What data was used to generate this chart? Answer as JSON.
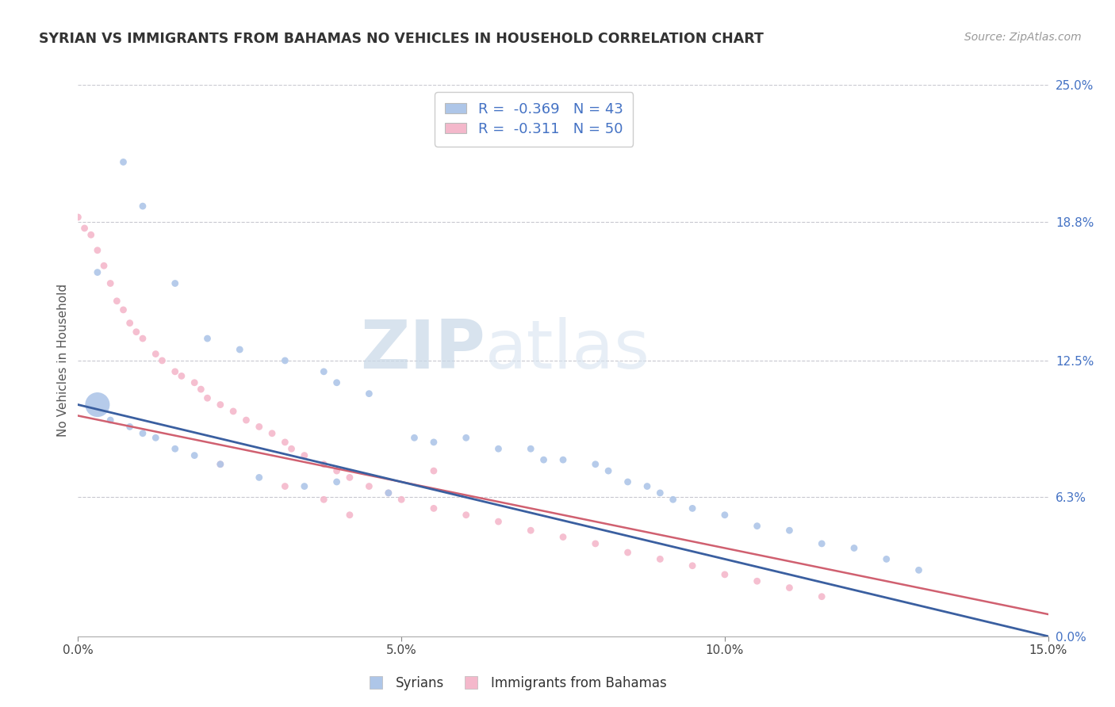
{
  "title": "SYRIAN VS IMMIGRANTS FROM BAHAMAS NO VEHICLES IN HOUSEHOLD CORRELATION CHART",
  "source": "Source: ZipAtlas.com",
  "ylabel": "No Vehicles in Household",
  "xlim": [
    0.0,
    0.15
  ],
  "ylim": [
    0.0,
    0.25
  ],
  "x_ticks": [
    0.0,
    0.05,
    0.1,
    0.15
  ],
  "x_tick_labels": [
    "0.0%",
    "5.0%",
    "10.0%",
    "15.0%"
  ],
  "y_ticks_right": [
    0.0,
    0.063,
    0.125,
    0.188,
    0.25
  ],
  "y_tick_labels_right": [
    "0.0%",
    "6.3%",
    "12.5%",
    "18.8%",
    "25.0%"
  ],
  "watermark_zip": "ZIP",
  "watermark_atlas": "atlas",
  "legend_label1": "R =  -0.369   N = 43",
  "legend_label2": "R =  -0.311   N = 50",
  "series1_label": "Syrians",
  "series2_label": "Immigrants from Bahamas",
  "series1_color": "#aec6e8",
  "series2_color": "#f4b8cb",
  "line1_color": "#3a5fa0",
  "line2_color": "#d06070",
  "background_color": "#ffffff",
  "grid_color": "#c8c8d0",
  "syrians_x": [
    0.007,
    0.01,
    0.003,
    0.015,
    0.02,
    0.025,
    0.032,
    0.038,
    0.04,
    0.045,
    0.052,
    0.055,
    0.06,
    0.065,
    0.07,
    0.072,
    0.075,
    0.08,
    0.082,
    0.085,
    0.088,
    0.09,
    0.092,
    0.095,
    0.1,
    0.105,
    0.11,
    0.115,
    0.12,
    0.125,
    0.13,
    0.04,
    0.048,
    0.003,
    0.005,
    0.008,
    0.01,
    0.012,
    0.015,
    0.018,
    0.022,
    0.028,
    0.035
  ],
  "syrians_y": [
    0.215,
    0.195,
    0.165,
    0.16,
    0.135,
    0.13,
    0.125,
    0.12,
    0.115,
    0.11,
    0.09,
    0.088,
    0.09,
    0.085,
    0.085,
    0.08,
    0.08,
    0.078,
    0.075,
    0.07,
    0.068,
    0.065,
    0.062,
    0.058,
    0.055,
    0.05,
    0.048,
    0.042,
    0.04,
    0.035,
    0.03,
    0.07,
    0.065,
    0.105,
    0.098,
    0.095,
    0.092,
    0.09,
    0.085,
    0.082,
    0.078,
    0.072,
    0.068
  ],
  "syrians_size": [
    40,
    40,
    40,
    40,
    40,
    40,
    40,
    40,
    40,
    40,
    40,
    40,
    40,
    40,
    40,
    40,
    40,
    40,
    40,
    40,
    40,
    40,
    40,
    40,
    40,
    40,
    40,
    40,
    40,
    40,
    40,
    40,
    40,
    500,
    40,
    40,
    40,
    40,
    40,
    40,
    40,
    40,
    40
  ],
  "bahamas_x": [
    0.0,
    0.001,
    0.002,
    0.003,
    0.004,
    0.005,
    0.006,
    0.007,
    0.008,
    0.009,
    0.01,
    0.012,
    0.013,
    0.015,
    0.016,
    0.018,
    0.019,
    0.02,
    0.022,
    0.024,
    0.026,
    0.028,
    0.03,
    0.032,
    0.033,
    0.035,
    0.038,
    0.04,
    0.042,
    0.045,
    0.048,
    0.05,
    0.055,
    0.06,
    0.065,
    0.07,
    0.075,
    0.08,
    0.085,
    0.09,
    0.095,
    0.1,
    0.105,
    0.11,
    0.115,
    0.055,
    0.032,
    0.038,
    0.042,
    0.022
  ],
  "bahamas_y": [
    0.19,
    0.185,
    0.182,
    0.175,
    0.168,
    0.16,
    0.152,
    0.148,
    0.142,
    0.138,
    0.135,
    0.128,
    0.125,
    0.12,
    0.118,
    0.115,
    0.112,
    0.108,
    0.105,
    0.102,
    0.098,
    0.095,
    0.092,
    0.088,
    0.085,
    0.082,
    0.078,
    0.075,
    0.072,
    0.068,
    0.065,
    0.062,
    0.058,
    0.055,
    0.052,
    0.048,
    0.045,
    0.042,
    0.038,
    0.035,
    0.032,
    0.028,
    0.025,
    0.022,
    0.018,
    0.075,
    0.068,
    0.062,
    0.055,
    0.078
  ],
  "bahamas_size": [
    40,
    40,
    40,
    40,
    40,
    40,
    40,
    40,
    40,
    40,
    40,
    40,
    40,
    40,
    40,
    40,
    40,
    40,
    40,
    40,
    40,
    40,
    40,
    40,
    40,
    40,
    40,
    40,
    40,
    40,
    40,
    40,
    40,
    40,
    40,
    40,
    40,
    40,
    40,
    40,
    40,
    40,
    40,
    40,
    40,
    40,
    40,
    40,
    40,
    40
  ]
}
